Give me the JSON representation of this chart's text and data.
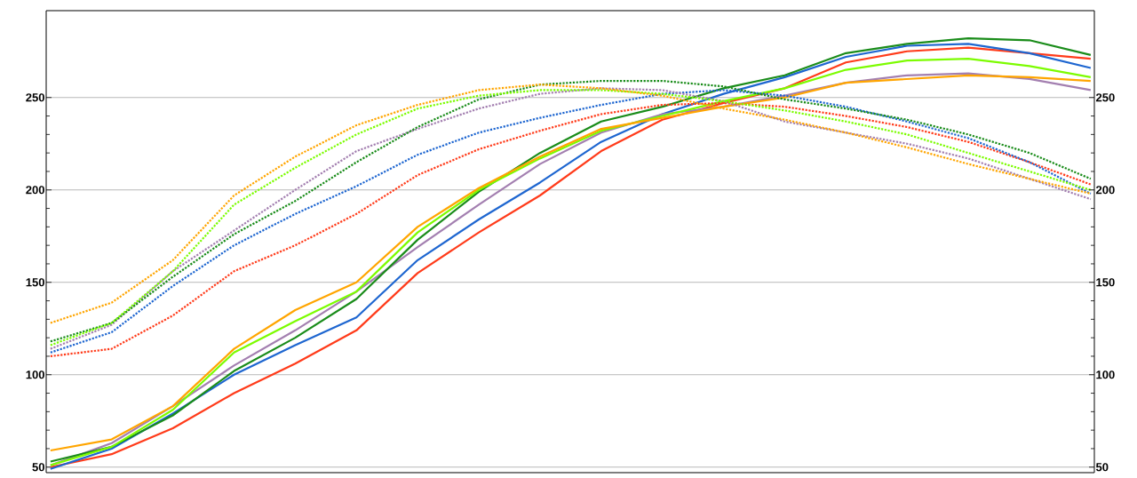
{
  "chart_data": {
    "type": "line",
    "categories": [
      null,
      null,
      null,
      null,
      null,
      null,
      null,
      null,
      null,
      null,
      null,
      null,
      null,
      null,
      null,
      null,
      null,
      null
    ],
    "ylim": [
      47,
      297
    ],
    "yticks": [
      50,
      100,
      150,
      200,
      250
    ],
    "y2lim": [
      47,
      297
    ],
    "y2ticks": [
      50,
      100,
      150,
      200,
      250
    ],
    "grid": "y",
    "series": [
      {
        "color": "#ffa500",
        "line_style": "dotted",
        "values": [
          128,
          139,
          162,
          197,
          218,
          235,
          246,
          254,
          257,
          255,
          251,
          244,
          238,
          231,
          223,
          214,
          206,
          198
        ]
      },
      {
        "color": "#7cfc00",
        "line_style": "dotted",
        "values": [
          116,
          128,
          156,
          192,
          212,
          230,
          244,
          251,
          254,
          254,
          252,
          248,
          243,
          237,
          230,
          220,
          210,
          200
        ]
      },
      {
        "color": "#1a8c1a",
        "line_style": "dotted",
        "values": [
          118,
          128,
          153,
          176,
          194,
          215,
          234,
          249,
          257,
          259,
          259,
          256,
          249,
          244,
          238,
          230,
          220,
          206
        ]
      },
      {
        "color": "#a37fb0",
        "line_style": "dotted",
        "values": [
          114,
          127,
          156,
          178,
          200,
          221,
          233,
          244,
          252,
          255,
          254,
          248,
          237,
          231,
          225,
          217,
          206,
          195
        ]
      },
      {
        "color": "#1e66d0",
        "line_style": "dotted",
        "values": [
          112,
          123,
          148,
          170,
          187,
          202,
          219,
          231,
          239,
          246,
          252,
          254,
          251,
          245,
          237,
          228,
          215,
          198
        ]
      },
      {
        "color": "#ff3b1a",
        "line_style": "dotted",
        "values": [
          110,
          114,
          132,
          156,
          170,
          187,
          208,
          222,
          232,
          241,
          246,
          247,
          245,
          240,
          234,
          226,
          215,
          203
        ]
      },
      {
        "color": "#ffa500",
        "line_style": "solid",
        "values": [
          59,
          65,
          83,
          114,
          135,
          150,
          180,
          201,
          218,
          233,
          239,
          245,
          250,
          258,
          260,
          262,
          261,
          259
        ]
      },
      {
        "color": "#7cfc00",
        "line_style": "solid",
        "values": [
          51,
          61,
          81,
          112,
          129,
          145,
          177,
          200,
          217,
          232,
          240,
          248,
          255,
          265,
          270,
          271,
          267,
          261
        ]
      },
      {
        "color": "#1a8c1a",
        "line_style": "solid",
        "values": [
          53,
          61,
          78,
          102,
          120,
          141,
          173,
          199,
          220,
          237,
          245,
          255,
          262,
          274,
          279,
          282,
          281,
          273
        ]
      },
      {
        "color": "#a37fb0",
        "line_style": "solid",
        "values": [
          51,
          63,
          83,
          105,
          124,
          145,
          169,
          192,
          214,
          231,
          241,
          245,
          251,
          258,
          262,
          263,
          260,
          254
        ]
      },
      {
        "color": "#1e66d0",
        "line_style": "solid",
        "values": [
          49,
          60,
          79,
          100,
          116,
          131,
          162,
          184,
          204,
          226,
          241,
          252,
          261,
          272,
          278,
          279,
          274,
          266
        ]
      },
      {
        "color": "#ff3b1a",
        "line_style": "solid",
        "values": [
          50,
          57,
          71,
          90,
          106,
          124,
          155,
          177,
          197,
          221,
          238,
          247,
          255,
          269,
          275,
          277,
          274,
          271
        ]
      }
    ]
  }
}
